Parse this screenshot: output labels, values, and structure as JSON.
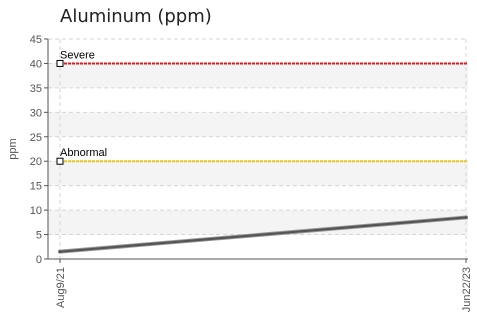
{
  "chart_data": {
    "type": "line",
    "title": "Aluminum (ppm)",
    "ylabel": "ppm",
    "xlabel": "",
    "ylim": [
      0,
      45
    ],
    "yticks": [
      0,
      5,
      10,
      15,
      20,
      25,
      30,
      35,
      40,
      45
    ],
    "categories": [
      "Aug9/21",
      "Jun22/23"
    ],
    "series": [
      {
        "values": [
          1.5,
          8.5
        ],
        "color": "#555555"
      }
    ],
    "thresholds": [
      {
        "label": "Severe",
        "value": 40,
        "color": "#e8141c"
      },
      {
        "label": "Abnormal",
        "value": 20,
        "color": "#f0c419"
      }
    ],
    "grid": true
  }
}
